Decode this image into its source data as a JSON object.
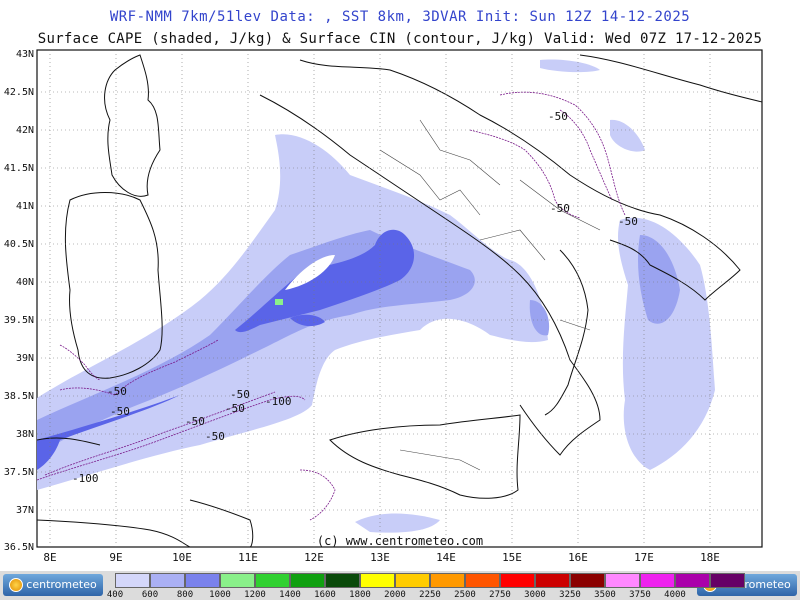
{
  "header": {
    "line1": "WRF-NMM 7km/51lev   Data: , SST 8km, 3DVAR   Init: Sun 12Z 14-12-2025",
    "line2": "Surface CAPE (shaded, J/kg) & Surface CIN (contour, J/kg)  Valid: Wed 07Z 17-12-2025"
  },
  "map": {
    "lat_labels": [
      "43N",
      "42.5N",
      "42N",
      "41.5N",
      "41N",
      "40.5N",
      "40N",
      "39.5N",
      "39N",
      "38.5N",
      "38N",
      "37.5N",
      "37N",
      "36.5N"
    ],
    "lon_labels": [
      "8E",
      "9E",
      "10E",
      "11E",
      "12E",
      "13E",
      "14E",
      "15E",
      "16E",
      "17E",
      "18E"
    ],
    "copyright": "(c) www.centrometeo.com",
    "cin_labels": [
      "-50",
      "-50",
      "-50",
      "-50",
      "-50",
      "-50",
      "-50",
      "-50",
      "-100",
      "-100",
      "-50"
    ],
    "colors": {
      "cape_light": "#c8cdf8",
      "cape_mid": "#9aa3f0",
      "cape_dark": "#5a64e8",
      "cin_contour": "#7a1a8a",
      "coast": "#111111"
    }
  },
  "legend": {
    "ticks": [
      "400",
      "600",
      "800",
      "1000",
      "1200",
      "1400",
      "1600",
      "1800",
      "2000",
      "2250",
      "2500",
      "2750",
      "3000",
      "3250",
      "3500",
      "3750",
      "4000"
    ],
    "colors": [
      "#d4d7fa",
      "#aab0f4",
      "#7a82ec",
      "#8af08a",
      "#30d030",
      "#10a010",
      "#0a4a0a",
      "#ffff00",
      "#ffcc00",
      "#ff9900",
      "#ff5500",
      "#ff0000",
      "#cc0000",
      "#8b0000",
      "#ff88ff",
      "#ee22ee",
      "#aa00aa",
      "#660066"
    ],
    "logo_text": "centrometeo"
  }
}
